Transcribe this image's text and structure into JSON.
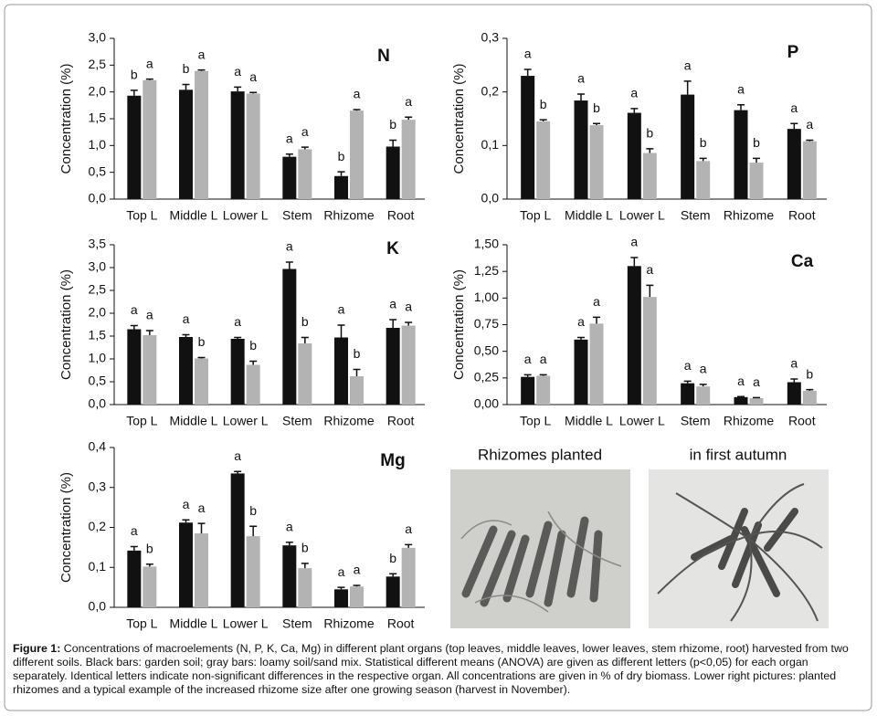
{
  "chart_data": [
    {
      "type": "bar",
      "title": "N",
      "y_label": "Concentration (%)",
      "categories": [
        "Top L",
        "Middle L",
        "Lower L",
        "Stem",
        "Rhizome",
        "Root"
      ],
      "ylim": [
        0,
        3
      ],
      "yticks": [
        {
          "value": 0,
          "label": "0,0"
        },
        {
          "value": 0.5,
          "label": "0,5"
        },
        {
          "value": 1,
          "label": "1,0"
        },
        {
          "value": 1.5,
          "label": "1,5"
        },
        {
          "value": 2,
          "label": "2,0"
        },
        {
          "value": 2.5,
          "label": "2,5"
        },
        {
          "value": 3,
          "label": "3,0"
        }
      ],
      "series": [
        {
          "color": "#111111",
          "values": [
            1.93,
            2.04,
            2.01,
            0.79,
            0.43,
            0.98
          ],
          "errors": [
            0.1,
            0.1,
            0.08,
            0.05,
            0.08,
            0.12
          ],
          "letters": [
            "b",
            "b",
            "a",
            "a",
            "b",
            "b"
          ]
        },
        {
          "color": "#b3b3b3",
          "values": [
            2.22,
            2.39,
            1.97,
            0.93,
            1.65,
            1.48
          ],
          "errors": [
            0.02,
            0.02,
            0.02,
            0.04,
            0.02,
            0.05
          ],
          "letters": [
            "a",
            "a",
            "a",
            "a",
            "a",
            "a"
          ]
        }
      ]
    },
    {
      "type": "bar",
      "title": "P",
      "y_label": "Concentration (%)",
      "categories": [
        "Top L",
        "Middle L",
        "Lower L",
        "Stem",
        "Rhizome",
        "Root"
      ],
      "ylim": [
        0,
        0.3
      ],
      "yticks": [
        {
          "value": 0,
          "label": "0,0"
        },
        {
          "value": 0.1,
          "label": "0,1"
        },
        {
          "value": 0.2,
          "label": "0,2"
        },
        {
          "value": 0.3,
          "label": "0,3"
        }
      ],
      "series": [
        {
          "color": "#111111",
          "values": [
            0.23,
            0.184,
            0.161,
            0.195,
            0.166,
            0.131
          ],
          "errors": [
            0.012,
            0.012,
            0.008,
            0.025,
            0.01,
            0.01
          ],
          "letters": [
            "a",
            "a",
            "a",
            "a",
            "a",
            "a"
          ]
        },
        {
          "color": "#b3b3b3",
          "values": [
            0.145,
            0.138,
            0.086,
            0.071,
            0.068,
            0.108
          ],
          "errors": [
            0.003,
            0.003,
            0.008,
            0.005,
            0.008,
            0.002
          ],
          "letters": [
            "b",
            "b",
            "b",
            "b",
            "b",
            "a"
          ]
        }
      ]
    },
    {
      "type": "bar",
      "title": "K",
      "y_label": "Concentration (%)",
      "categories": [
        "Top L",
        "Middle L",
        "Lower L",
        "Stem",
        "Rhizome",
        "Root"
      ],
      "ylim": [
        0,
        3.5
      ],
      "yticks": [
        {
          "value": 0,
          "label": "0,0"
        },
        {
          "value": 0.5,
          "label": "0,5"
        },
        {
          "value": 1,
          "label": "1,0"
        },
        {
          "value": 1.5,
          "label": "1,5"
        },
        {
          "value": 2,
          "label": "2,0"
        },
        {
          "value": 2.5,
          "label": "2,5"
        },
        {
          "value": 3,
          "label": "3,0"
        },
        {
          "value": 3.5,
          "label": "3,5"
        }
      ],
      "series": [
        {
          "color": "#111111",
          "values": [
            1.65,
            1.48,
            1.44,
            2.97,
            1.47,
            1.68
          ],
          "errors": [
            0.08,
            0.05,
            0.03,
            0.15,
            0.27,
            0.18
          ],
          "letters": [
            "a",
            "a",
            "a",
            "a",
            "a",
            "a"
          ]
        },
        {
          "color": "#b3b3b3",
          "values": [
            1.52,
            1.01,
            0.87,
            1.34,
            0.62,
            1.73
          ],
          "errors": [
            0.1,
            0.02,
            0.08,
            0.13,
            0.15,
            0.07
          ],
          "letters": [
            "a",
            "b",
            "b",
            "b",
            "b",
            "a"
          ]
        }
      ]
    },
    {
      "type": "bar",
      "title": "Ca",
      "y_label": "Concentration (%)",
      "categories": [
        "Top L",
        "Middle L",
        "Lower L",
        "Stem",
        "Rhizome",
        "Root"
      ],
      "ylim": [
        0,
        1.5
      ],
      "yticks": [
        {
          "value": 0,
          "label": "0,00"
        },
        {
          "value": 0.25,
          "label": "0,25"
        },
        {
          "value": 0.5,
          "label": "0,50"
        },
        {
          "value": 0.75,
          "label": "0,75"
        },
        {
          "value": 1,
          "label": "1,00"
        },
        {
          "value": 1.25,
          "label": "1,25"
        },
        {
          "value": 1.5,
          "label": "1,50"
        }
      ],
      "series": [
        {
          "color": "#111111",
          "values": [
            0.26,
            0.61,
            1.3,
            0.2,
            0.07,
            0.21
          ],
          "errors": [
            0.02,
            0.02,
            0.08,
            0.02,
            0.005,
            0.03
          ],
          "letters": [
            "a",
            "a",
            "a",
            "a",
            "a",
            "a"
          ]
        },
        {
          "color": "#b3b3b3",
          "values": [
            0.27,
            0.76,
            1.01,
            0.17,
            0.06,
            0.13
          ],
          "errors": [
            0.01,
            0.06,
            0.11,
            0.02,
            0.005,
            0.01
          ],
          "letters": [
            "a",
            "a",
            "a",
            "a",
            "a",
            "b"
          ]
        }
      ]
    },
    {
      "type": "bar",
      "title": "Mg",
      "y_label": "Concentration (%)",
      "categories": [
        "Top L",
        "Middle L",
        "Lower L",
        "Stem",
        "Rhizome",
        "Root"
      ],
      "ylim": [
        0,
        0.4
      ],
      "yticks": [
        {
          "value": 0,
          "label": "0,0"
        },
        {
          "value": 0.1,
          "label": "0,1"
        },
        {
          "value": 0.2,
          "label": "0,2"
        },
        {
          "value": 0.3,
          "label": "0,3"
        },
        {
          "value": 0.4,
          "label": "0,4"
        }
      ],
      "series": [
        {
          "color": "#111111",
          "values": [
            0.142,
            0.212,
            0.335,
            0.155,
            0.045,
            0.077
          ],
          "errors": [
            0.01,
            0.007,
            0.005,
            0.008,
            0.005,
            0.007
          ],
          "letters": [
            "a",
            "a",
            "a",
            "a",
            "a",
            "b"
          ]
        },
        {
          "color": "#b3b3b3",
          "values": [
            0.102,
            0.185,
            0.178,
            0.098,
            0.052,
            0.149
          ],
          "errors": [
            0.006,
            0.025,
            0.025,
            0.012,
            0.003,
            0.008
          ],
          "letters": [
            "b",
            "a",
            "b",
            "b",
            "a",
            "a"
          ]
        }
      ]
    }
  ],
  "photos": [
    "Rhizomes planted",
    "in first autumn"
  ],
  "caption": {
    "label": "Figure 1:",
    "text": "Concentrations of macroelements (N, P, K, Ca, Mg) in different plant organs (top leaves, middle leaves, lower leaves, stem rhizome, root) harvested from two different soils. Black bars: garden soil; gray bars: loamy soil/sand mix. Statistical different means (ANOVA) are given as different letters (p<0,05) for each organ separately. Identical letters indicate non-significant differences in the respective organ. All concentrations are given in % of dry biomass. Lower right pictures: planted rhizomes and a typical example of the increased rhizome size after one growing season (harvest in November)."
  }
}
